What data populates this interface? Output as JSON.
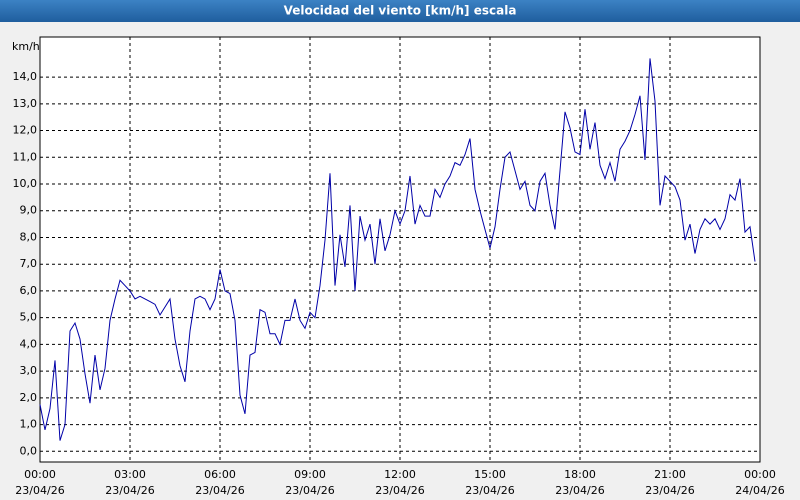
{
  "chart_data": {
    "type": "line",
    "title": "Velocidad del viento [km/h] escala",
    "ylabel": "km/h",
    "color": "#0000a8",
    "grid": true,
    "xlim": [
      0,
      1440
    ],
    "xticks": [
      {
        "value": 0,
        "label": "00:00",
        "date": "23/04/26"
      },
      {
        "value": 180,
        "label": "03:00",
        "date": "23/04/26"
      },
      {
        "value": 360,
        "label": "06:00",
        "date": "23/04/26"
      },
      {
        "value": 540,
        "label": "09:00",
        "date": "23/04/26"
      },
      {
        "value": 720,
        "label": "12:00",
        "date": "23/04/26"
      },
      {
        "value": 900,
        "label": "15:00",
        "date": "23/04/26"
      },
      {
        "value": 1080,
        "label": "18:00",
        "date": "23/04/26"
      },
      {
        "value": 1260,
        "label": "21:00",
        "date": "23/04/26"
      },
      {
        "value": 1440,
        "label": "00:00",
        "date": "24/04/26"
      }
    ],
    "ylim": [
      -0.4,
      15.5
    ],
    "yticks": [
      {
        "value": 0,
        "label": "0,0"
      },
      {
        "value": 1,
        "label": "1,0"
      },
      {
        "value": 2,
        "label": "2,0"
      },
      {
        "value": 3,
        "label": "3,0"
      },
      {
        "value": 4,
        "label": "4,0"
      },
      {
        "value": 5,
        "label": "5,0"
      },
      {
        "value": 6,
        "label": "6,0"
      },
      {
        "value": 7,
        "label": "7,0"
      },
      {
        "value": 8,
        "label": "8,0"
      },
      {
        "value": 9,
        "label": "9,0"
      },
      {
        "value": 10,
        "label": "10,0"
      },
      {
        "value": 11,
        "label": "11,0"
      },
      {
        "value": 12,
        "label": "12,0"
      },
      {
        "value": 13,
        "label": "13,0"
      },
      {
        "value": 14,
        "label": "14,0"
      }
    ],
    "x": [
      0,
      10,
      20,
      30,
      40,
      50,
      60,
      70,
      80,
      90,
      100,
      110,
      120,
      130,
      140,
      150,
      160,
      170,
      180,
      190,
      200,
      210,
      220,
      230,
      240,
      250,
      260,
      270,
      280,
      290,
      300,
      310,
      320,
      330,
      340,
      350,
      360,
      370,
      380,
      390,
      400,
      410,
      420,
      430,
      440,
      450,
      460,
      470,
      480,
      490,
      500,
      510,
      520,
      530,
      540,
      550,
      560,
      570,
      580,
      590,
      600,
      610,
      620,
      630,
      640,
      650,
      660,
      670,
      680,
      690,
      700,
      710,
      720,
      730,
      740,
      750,
      760,
      770,
      780,
      790,
      800,
      810,
      820,
      830,
      840,
      850,
      860,
      870,
      880,
      890,
      900,
      910,
      920,
      930,
      940,
      950,
      960,
      970,
      980,
      990,
      1000,
      1010,
      1020,
      1030,
      1040,
      1050,
      1060,
      1070,
      1080,
      1090,
      1100,
      1110,
      1120,
      1130,
      1140,
      1150,
      1160,
      1170,
      1180,
      1190,
      1200,
      1210,
      1220,
      1230,
      1240,
      1250,
      1260,
      1270,
      1280,
      1290,
      1300,
      1310,
      1320,
      1330,
      1340,
      1350,
      1360,
      1370,
      1380,
      1390,
      1400,
      1410,
      1420,
      1430
    ],
    "values": [
      1.75,
      0.8,
      1.6,
      3.4,
      0.4,
      1.0,
      4.5,
      4.8,
      4.2,
      2.9,
      1.8,
      3.6,
      2.3,
      3.1,
      4.9,
      5.7,
      6.4,
      6.2,
      6.0,
      5.7,
      5.8,
      5.7,
      5.6,
      5.5,
      5.1,
      5.4,
      5.7,
      4.2,
      3.2,
      2.6,
      4.5,
      5.7,
      5.8,
      5.7,
      5.3,
      5.7,
      6.8,
      6.0,
      5.9,
      4.9,
      2.1,
      1.4,
      3.6,
      3.7,
      5.3,
      5.2,
      4.4,
      4.4,
      4.0,
      4.9,
      4.9,
      5.7,
      4.9,
      4.6,
      5.2,
      5.0,
      6.2,
      7.9,
      10.4,
      6.2,
      8.1,
      6.9,
      9.2,
      6.0,
      8.8,
      7.9,
      8.5,
      7.0,
      8.7,
      7.5,
      8.1,
      9.0,
      8.5,
      9.0,
      10.3,
      8.5,
      9.2,
      8.8,
      8.8,
      9.8,
      9.5,
      10.0,
      10.3,
      10.8,
      10.7,
      11.1,
      11.7,
      9.8,
      9.0,
      8.3,
      7.6,
      8.4,
      9.8,
      11.0,
      11.2,
      10.5,
      9.8,
      10.1,
      9.2,
      9.0,
      10.1,
      10.4,
      9.2,
      8.3,
      10.5,
      12.7,
      12.1,
      11.2,
      11.1,
      12.8,
      11.3,
      12.3,
      10.7,
      10.2,
      10.8,
      10.1,
      11.3,
      11.6,
      12.0,
      12.6,
      13.3,
      10.9,
      14.7,
      13.1,
      9.2,
      10.3,
      10.1,
      9.9,
      9.4,
      7.9,
      8.5,
      7.4,
      8.3,
      8.7,
      8.5,
      8.7,
      8.3,
      8.7,
      9.6,
      9.4,
      10.2,
      8.2,
      8.4,
      7.1
    ]
  }
}
